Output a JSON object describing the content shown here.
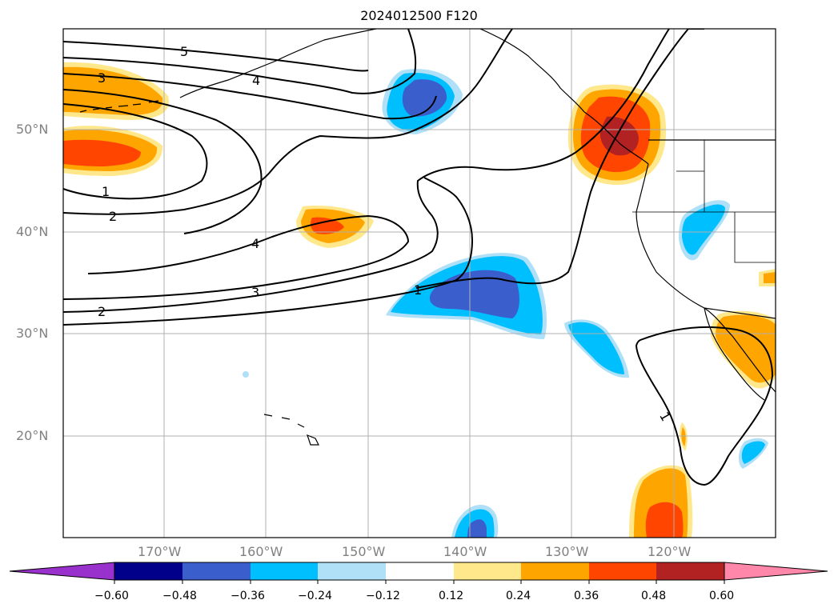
{
  "title": "2024012500 F120",
  "lat_labels": [
    "50°N",
    "40°N",
    "30°N",
    "20°N"
  ],
  "lon_labels": [
    "170°W",
    "160°W",
    "150°W",
    "140°W",
    "130°W",
    "120°W"
  ],
  "contour_labels": [
    "5",
    "4",
    "3",
    "1",
    "2",
    "4",
    "3",
    "2",
    "1",
    "1"
  ],
  "colorbar": {
    "ticks": [
      "−0.60",
      "−0.48",
      "−0.36",
      "−0.24",
      "−0.12",
      "0.12",
      "0.24",
      "0.36",
      "0.48",
      "0.60"
    ],
    "colors": [
      "#9932cc",
      "#00008b",
      "#3a5fcd",
      "#00bfff",
      "#b0e0f8",
      "#ffffff",
      "#ffe88c",
      "#ffa500",
      "#ff4500",
      "#b22222",
      "#ff88aa"
    ]
  },
  "legend_colors": {
    "strong_neg": "#3a5fcd",
    "mid_neg": "#00bfff",
    "weak_neg": "#b0e0f8",
    "weak_pos": "#ffe88c",
    "mid_pos": "#ffa500",
    "strong_pos": "#ff4500",
    "very_strong_pos": "#b22222"
  }
}
